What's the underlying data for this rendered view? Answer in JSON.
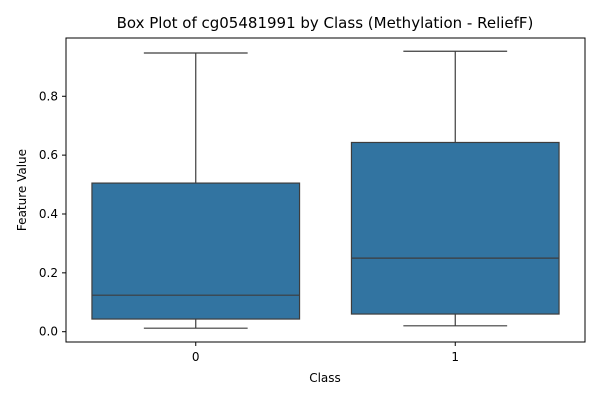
{
  "chart_data": {
    "type": "box",
    "title": "Box Plot of cg05481991 by Class (Methylation - ReliefF)",
    "xlabel": "Class",
    "ylabel": "Feature Value",
    "categories": [
      "0",
      "1"
    ],
    "boxes": [
      {
        "category": "0",
        "whisker_low": 0.012,
        "q1": 0.043,
        "median": 0.124,
        "q3": 0.505,
        "whisker_high": 0.947
      },
      {
        "category": "1",
        "whisker_low": 0.02,
        "q1": 0.06,
        "median": 0.25,
        "q3": 0.643,
        "whisker_high": 0.953
      }
    ],
    "ylim": [
      -0.035,
      0.998
    ],
    "yticks": [
      "0.0",
      "0.2",
      "0.4",
      "0.6",
      "0.8"
    ],
    "box_color": "#3274a1",
    "line_color": "#3d3d3d",
    "grid": false
  }
}
